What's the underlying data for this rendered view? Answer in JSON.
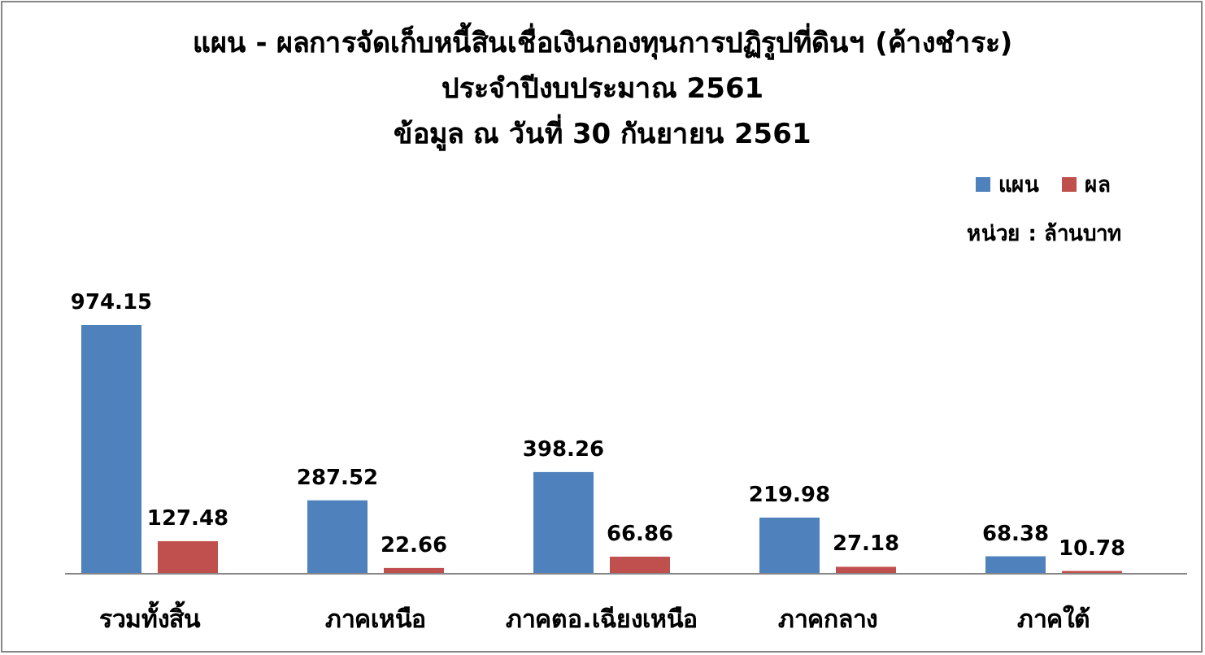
{
  "chart_data": {
    "type": "bar",
    "title": "แผน - ผลการจัดเก็บหนี้สินเชื่อเงินกองทุนการปฏิรูปที่ดินฯ (ค้างชำระ)",
    "subtitle": "ประจำปีงบประมาณ 2561\nข้อมูล ณ วันที่ 30 กันยายน 2561",
    "categories": [
      "รวมทั้งสิ้น",
      "ภาคเหนือ",
      "ภาคตอ.เฉียงเหนือ",
      "ภาคกลาง",
      "ภาคใต้"
    ],
    "series": [
      {
        "name": "แผน",
        "color": "#4f81bd",
        "values": [
          974.15,
          287.52,
          398.26,
          219.98,
          68.38
        ]
      },
      {
        "name": "ผล",
        "color": "#c0504d",
        "values": [
          127.48,
          22.66,
          66.86,
          27.18,
          10.78
        ]
      }
    ],
    "data_labels": true,
    "legend": "top right",
    "annotations": [
      "หน่วย : ล้านบาท"
    ]
  }
}
